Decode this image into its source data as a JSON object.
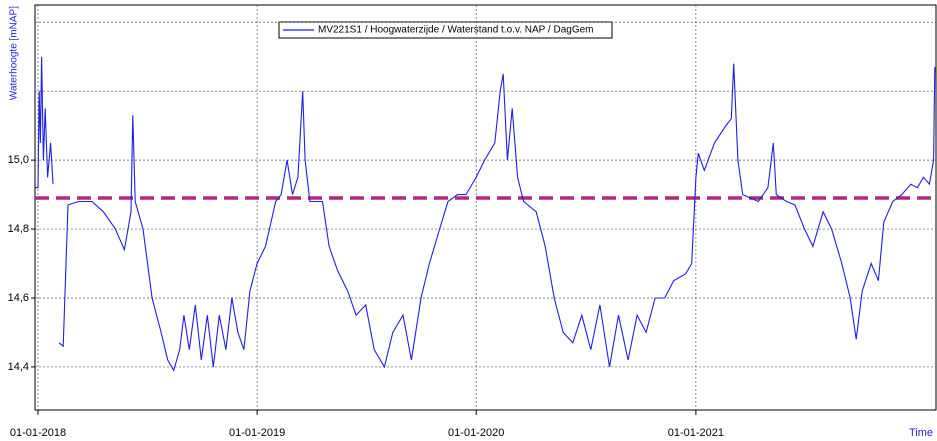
{
  "chart_data": {
    "type": "line",
    "ylabel": "Waterhoogte [mNAP]",
    "xlabel": "Time",
    "x": [
      "2017-12-28",
      "2018-01-01",
      "2018-01-03",
      "2018-01-05",
      "2018-01-07",
      "2018-01-10",
      "2018-01-13",
      "2018-01-17",
      "2018-01-22",
      "2018-01-26",
      "2018-01-30",
      "2018-02-05",
      "2018-02-12",
      "2018-02-20",
      "2018-03-10",
      "2018-04-01",
      "2018-04-20",
      "2018-05-10",
      "2018-05-25",
      "2018-06-05",
      "2018-06-08",
      "2018-06-12",
      "2018-06-25",
      "2018-07-10",
      "2018-07-25",
      "2018-08-05",
      "2018-08-15",
      "2018-08-25",
      "2018-09-01",
      "2018-09-10",
      "2018-09-20",
      "2018-09-30",
      "2018-10-10",
      "2018-10-20",
      "2018-10-30",
      "2018-11-10",
      "2018-11-20",
      "2018-11-30",
      "2018-12-10",
      "2018-12-20",
      "2019-01-01",
      "2019-01-15",
      "2019-02-01",
      "2019-02-10",
      "2019-02-20",
      "2019-03-01",
      "2019-03-10",
      "2019-03-18",
      "2019-03-22",
      "2019-03-30",
      "2019-04-20",
      "2019-05-01",
      "2019-05-15",
      "2019-06-01",
      "2019-06-15",
      "2019-07-01",
      "2019-07-15",
      "2019-08-01",
      "2019-08-15",
      "2019-09-01",
      "2019-09-15",
      "2019-10-01",
      "2019-10-15",
      "2019-11-01",
      "2019-11-15",
      "2019-12-01",
      "2019-12-15",
      "2020-01-01",
      "2020-01-15",
      "2020-02-01",
      "2020-02-10",
      "2020-02-15",
      "2020-02-22",
      "2020-03-01",
      "2020-03-10",
      "2020-03-20",
      "2020-04-10",
      "2020-04-25",
      "2020-05-10",
      "2020-05-25",
      "2020-06-10",
      "2020-06-25",
      "2020-07-10",
      "2020-07-25",
      "2020-08-10",
      "2020-08-25",
      "2020-09-10",
      "2020-09-25",
      "2020-10-10",
      "2020-10-25",
      "2020-11-10",
      "2020-11-25",
      "2020-12-15",
      "2020-12-25",
      "2021-01-01",
      "2021-01-05",
      "2021-01-15",
      "2021-02-01",
      "2021-02-20",
      "2021-03-01",
      "2021-03-05",
      "2021-03-12",
      "2021-03-20",
      "2021-04-15",
      "2021-05-01",
      "2021-05-10",
      "2021-05-15",
      "2021-06-01",
      "2021-06-15",
      "2021-07-01",
      "2021-07-15",
      "2021-08-01",
      "2021-08-15",
      "2021-09-01",
      "2021-09-15",
      "2021-09-25",
      "2021-10-05",
      "2021-10-20",
      "2021-11-01",
      "2021-11-10",
      "2021-11-25",
      "2021-12-10",
      "2021-12-25",
      "2022-01-05",
      "2022-01-15",
      "2022-01-25",
      "2022-02-01",
      "2022-02-03"
    ],
    "series": [
      {
        "name": "MV221S1 / Hoogwaterzijde / Waterstand t.o.v. NAP / DagGem",
        "color": "#1f1fe6",
        "values": [
          14.92,
          14.92,
          15.2,
          15.05,
          15.3,
          15.0,
          15.15,
          14.95,
          15.05,
          14.93,
          null,
          14.47,
          14.46,
          14.87,
          14.88,
          14.88,
          14.85,
          14.8,
          14.74,
          14.85,
          15.13,
          14.88,
          14.8,
          14.6,
          14.5,
          14.42,
          14.39,
          14.45,
          14.55,
          14.45,
          14.58,
          14.42,
          14.55,
          14.4,
          14.55,
          14.45,
          14.6,
          14.5,
          14.45,
          14.62,
          14.7,
          14.75,
          14.88,
          14.9,
          15.0,
          14.9,
          14.95,
          15.2,
          15.0,
          14.88,
          14.88,
          14.75,
          14.68,
          14.62,
          14.55,
          14.58,
          14.45,
          14.4,
          14.5,
          14.55,
          14.42,
          14.6,
          14.7,
          14.8,
          14.88,
          14.9,
          14.9,
          14.95,
          15.0,
          15.05,
          15.2,
          15.25,
          15.0,
          15.15,
          14.95,
          14.88,
          14.85,
          14.75,
          14.6,
          14.5,
          14.47,
          14.55,
          14.45,
          14.58,
          14.4,
          14.55,
          14.42,
          14.55,
          14.5,
          14.6,
          14.6,
          14.65,
          14.67,
          14.7,
          14.95,
          15.02,
          14.97,
          15.05,
          15.1,
          15.12,
          15.28,
          15.0,
          14.9,
          14.88,
          14.92,
          15.05,
          14.9,
          14.88,
          14.87,
          14.8,
          14.75,
          14.85,
          14.8,
          14.7,
          14.6,
          14.48,
          14.62,
          14.7,
          14.65,
          14.82,
          14.88,
          14.9,
          14.93,
          14.92,
          14.95,
          14.93,
          15.0,
          15.27
        ]
      }
    ],
    "reference_line": {
      "value": 14.89,
      "color": "#b5267f"
    },
    "xlim": [
      "2017-12-27",
      "2022-02-05"
    ],
    "xticks": [
      {
        "value": "2018-01-01",
        "label": "01-01-2018"
      },
      {
        "value": "2019-01-01",
        "label": "01-01-2019"
      },
      {
        "value": "2020-01-01",
        "label": "01-01-2020"
      },
      {
        "value": "2021-01-01",
        "label": "01-01-2021"
      }
    ],
    "ylim": [
      14.275,
      15.45
    ],
    "yticks": [
      {
        "value": 14.4,
        "label": "14,4"
      },
      {
        "value": 14.6,
        "label": "14,6"
      },
      {
        "value": 14.8,
        "label": "14,8"
      },
      {
        "value": 15.0,
        "label": "15,0"
      }
    ],
    "ygrid": [
      14.4,
      14.6,
      14.8,
      15.0,
      15.2,
      15.4
    ],
    "grid": true,
    "legend": "top"
  }
}
